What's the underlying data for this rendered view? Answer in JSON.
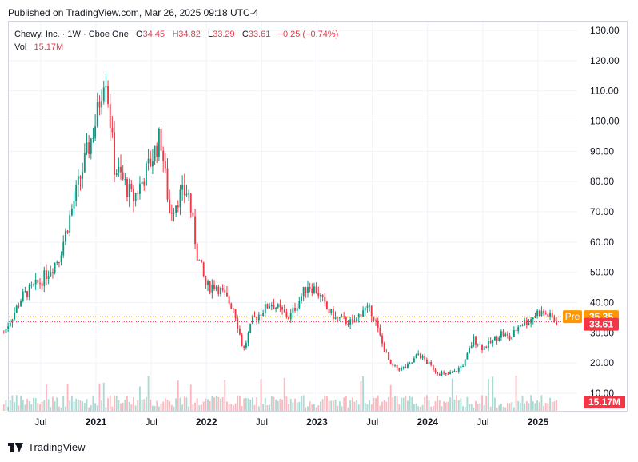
{
  "published": "Published on TradingView.com, Mar 26, 2025 09:18 UTC-4",
  "legend": {
    "symbol": "Chewy, Inc. · 1W · Cboe One",
    "open_label": "O",
    "open": "34.45",
    "high_label": "H",
    "high": "34.82",
    "low_label": "L",
    "low": "33.29",
    "close_label": "C",
    "close": "33.61",
    "change": "−0.25 (−0.74%)",
    "vol_label": "Vol",
    "vol": "15.17M"
  },
  "footer": {
    "brand": "TradingView",
    "logo_icon": "tradingview-logo-icon"
  },
  "colors": {
    "up": "#089981",
    "down": "#f23645",
    "pre": "#ff9800",
    "grid": "#f0f3fa",
    "text": "#131722"
  },
  "chart_data": {
    "type": "candlestick",
    "interval": "1W",
    "y_axis": {
      "min": 10,
      "max": 130,
      "ticks": [
        "130.00",
        "120.00",
        "110.00",
        "100.00",
        "90.00",
        "80.00",
        "70.00",
        "60.00",
        "50.00",
        "40.00",
        "30.00",
        "20.00",
        "10.00"
      ],
      "position": "right"
    },
    "x_axis": {
      "ticks": [
        {
          "label": "Jul",
          "date": "2020-07"
        },
        {
          "label": "2021",
          "date": "2021-01"
        },
        {
          "label": "Jul",
          "date": "2021-07"
        },
        {
          "label": "2022",
          "date": "2022-01"
        },
        {
          "label": "Jul",
          "date": "2022-07"
        },
        {
          "label": "2023",
          "date": "2023-01"
        },
        {
          "label": "Jul",
          "date": "2023-07"
        },
        {
          "label": "2024",
          "date": "2024-01"
        },
        {
          "label": "Jul",
          "date": "2024-07"
        },
        {
          "label": "2025",
          "date": "2025-01"
        }
      ]
    },
    "start_date": "2020-03",
    "end_date": "2025-03",
    "close_path": [
      {
        "date": "2020-03",
        "close": 30
      },
      {
        "date": "2020-05",
        "close": 42
      },
      {
        "date": "2020-07",
        "close": 47
      },
      {
        "date": "2020-09",
        "close": 55
      },
      {
        "date": "2020-11",
        "close": 78
      },
      {
        "date": "2021-01",
        "close": 100
      },
      {
        "date": "2021-02",
        "close": 118
      },
      {
        "date": "2021-03",
        "close": 85
      },
      {
        "date": "2021-04",
        "close": 80
      },
      {
        "date": "2021-05",
        "close": 74
      },
      {
        "date": "2021-06",
        "close": 80
      },
      {
        "date": "2021-07",
        "close": 87
      },
      {
        "date": "2021-08",
        "close": 95
      },
      {
        "date": "2021-09",
        "close": 70
      },
      {
        "date": "2021-10",
        "close": 75
      },
      {
        "date": "2021-11",
        "close": 77
      },
      {
        "date": "2021-12",
        "close": 56
      },
      {
        "date": "2022-01",
        "close": 45
      },
      {
        "date": "2022-02",
        "close": 46
      },
      {
        "date": "2022-03",
        "close": 42
      },
      {
        "date": "2022-04",
        "close": 38
      },
      {
        "date": "2022-05",
        "close": 24
      },
      {
        "date": "2022-06",
        "close": 34
      },
      {
        "date": "2022-08",
        "close": 40
      },
      {
        "date": "2022-10",
        "close": 35
      },
      {
        "date": "2022-12",
        "close": 46
      },
      {
        "date": "2023-01",
        "close": 44
      },
      {
        "date": "2023-02",
        "close": 38
      },
      {
        "date": "2023-03",
        "close": 35
      },
      {
        "date": "2023-04",
        "close": 34
      },
      {
        "date": "2023-05",
        "close": 33
      },
      {
        "date": "2023-06",
        "close": 38
      },
      {
        "date": "2023-07",
        "close": 37
      },
      {
        "date": "2023-08",
        "close": 27
      },
      {
        "date": "2023-09",
        "close": 19
      },
      {
        "date": "2023-10",
        "close": 18
      },
      {
        "date": "2023-11",
        "close": 19
      },
      {
        "date": "2023-12",
        "close": 23
      },
      {
        "date": "2024-01",
        "close": 20
      },
      {
        "date": "2024-02",
        "close": 17
      },
      {
        "date": "2024-03",
        "close": 16
      },
      {
        "date": "2024-04",
        "close": 17
      },
      {
        "date": "2024-05",
        "close": 20
      },
      {
        "date": "2024-06",
        "close": 28
      },
      {
        "date": "2024-07",
        "close": 25
      },
      {
        "date": "2024-08",
        "close": 27
      },
      {
        "date": "2024-09",
        "close": 30
      },
      {
        "date": "2024-10",
        "close": 28
      },
      {
        "date": "2024-11",
        "close": 33
      },
      {
        "date": "2024-12",
        "close": 34
      },
      {
        "date": "2025-01",
        "close": 37
      },
      {
        "date": "2025-02",
        "close": 36
      },
      {
        "date": "2025-03",
        "close": 33.61
      }
    ],
    "last_price": {
      "value": 33.61,
      "label": "33.61"
    },
    "pre_market": {
      "label": "Pre",
      "value": 35.35,
      "text": "35.35"
    },
    "volume_label": {
      "text": "15.17M"
    }
  }
}
